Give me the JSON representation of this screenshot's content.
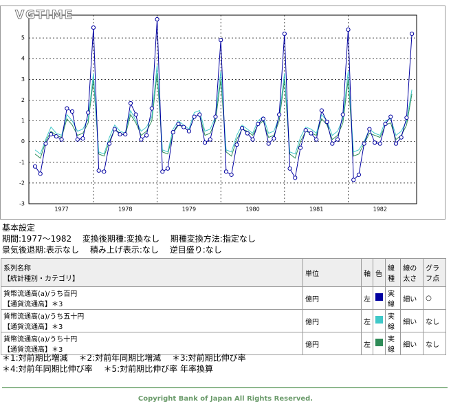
{
  "chart_data": {
    "type": "line",
    "watermark": "VGTIME",
    "categories": [
      null,
      null,
      null,
      null,
      null,
      "1977",
      null,
      null,
      null,
      null,
      null,
      null,
      null,
      null,
      null,
      null,
      null,
      "1978",
      null,
      null,
      null,
      null,
      null,
      null,
      null,
      null,
      null,
      null,
      null,
      "1979",
      null,
      null,
      null,
      null,
      null,
      null,
      null,
      null,
      null,
      null,
      null,
      "1980",
      null,
      null,
      null,
      null,
      null,
      null,
      null,
      null,
      null,
      null,
      null,
      "1981",
      null,
      null,
      null,
      null,
      null,
      null,
      null,
      null,
      null,
      null,
      null,
      "1982",
      null,
      null,
      null,
      null,
      null,
      null
    ],
    "ylim": [
      -3,
      6.1
    ],
    "yticks": [
      -3,
      -2,
      -1,
      0,
      1,
      2,
      3,
      4,
      5
    ],
    "grid": true,
    "series": [
      {
        "name": "貨幣流通高(a)/うち百円",
        "color": "#0000a0",
        "marker": true,
        "values": [
          -1.2,
          -1.55,
          -0.1,
          0.35,
          0.25,
          0.1,
          1.6,
          1.45,
          0.1,
          0.15,
          1.4,
          5.5,
          -1.4,
          -1.45,
          -0.1,
          0.6,
          0.35,
          0.35,
          1.85,
          1.3,
          0.1,
          0.3,
          1.6,
          5.9,
          -1.45,
          -1.3,
          0.45,
          0.85,
          0.7,
          0.5,
          1.2,
          1.3,
          -0.05,
          0.1,
          1.2,
          4.9,
          -1.45,
          -1.6,
          -0.15,
          0.65,
          0.4,
          0.1,
          0.85,
          1.1,
          -0.1,
          0.15,
          1.3,
          5.2,
          -1.3,
          -1.75,
          -0.3,
          0.55,
          0.4,
          0.1,
          1.5,
          0.95,
          -0.1,
          0.1,
          1.3,
          5.4,
          -1.85,
          -1.6,
          -0.1,
          0.6,
          -0.05,
          -0.1,
          0.85,
          1.2,
          -0.1,
          0.2,
          1.15,
          5.2
        ]
      },
      {
        "name": "貨幣流通高(a)/うち五十円",
        "color": "#40c8c8",
        "marker": false,
        "values": [
          -0.4,
          -0.6,
          0.1,
          0.7,
          0.4,
          0.3,
          1.3,
          1.0,
          0.5,
          0.6,
          1.1,
          3.3,
          -0.5,
          -0.6,
          0.2,
          0.8,
          0.5,
          0.4,
          1.5,
          1.0,
          0.5,
          0.7,
          1.2,
          3.7,
          -0.4,
          -0.5,
          0.6,
          1.0,
          0.8,
          0.6,
          1.4,
          1.5,
          0.5,
          0.6,
          1.2,
          3.4,
          -0.4,
          -0.5,
          0.3,
          0.8,
          0.6,
          0.4,
          1.0,
          1.2,
          0.4,
          0.5,
          1.2,
          3.3,
          -0.5,
          -0.6,
          0.2,
          0.7,
          0.6,
          0.4,
          1.3,
          1.0,
          0.3,
          0.5,
          1.1,
          3.4,
          -0.5,
          -0.4,
          0.0,
          0.6,
          0.4,
          0.3,
          1.0,
          1.1,
          0.3,
          0.5,
          1.0,
          2.5
        ]
      },
      {
        "name": "貨幣流通高(a)/うち十円",
        "color": "#2e8b57",
        "marker": false,
        "values": [
          -0.6,
          -0.8,
          0,
          0.5,
          0.3,
          0.2,
          1.1,
          0.8,
          0.3,
          0.4,
          0.9,
          3.0,
          -0.6,
          -0.7,
          0.0,
          0.6,
          0.4,
          0.3,
          1.3,
          0.9,
          0.3,
          0.5,
          1.0,
          3.3,
          -0.5,
          -0.6,
          0.4,
          0.8,
          0.7,
          0.5,
          1.2,
          1.3,
          0.3,
          0.4,
          1.0,
          3.0,
          -0.5,
          -0.7,
          0.1,
          0.6,
          0.5,
          0.3,
          0.8,
          1.0,
          0.2,
          0.3,
          1.0,
          3.0,
          -0.6,
          -0.8,
          0.0,
          0.5,
          0.4,
          0.3,
          1.1,
          0.8,
          0.1,
          0.3,
          0.9,
          3.0,
          -0.7,
          -0.6,
          -0.1,
          0.4,
          0.3,
          0.2,
          0.8,
          0.9,
          0.1,
          0.3,
          0.8,
          2.3
        ]
      }
    ]
  },
  "settings": {
    "heading": "基本設定",
    "lines": [
      "期間:1977～1982　 変換後期種:変換なし　 期種変換方法:指定なし",
      "景気後退期:表示なし　 積み上げ表示:なし　 逆目盛り:なし"
    ]
  },
  "table": {
    "headers": [
      "系列名称",
      "【統計種別・カテゴリ】",
      "単位",
      "軸",
      "色",
      "線種",
      "線の太さ",
      "グラフ点"
    ],
    "rows": [
      {
        "category": "【通貨流通高】＊3",
        "unit": "億円",
        "axis": "左",
        "line": "実線",
        "width": "細い",
        "points": "○"
      },
      {
        "category": "【通貨流通高】＊3",
        "unit": "億円",
        "axis": "左",
        "line": "実線",
        "width": "細い",
        "points": "なし"
      },
      {
        "category": "【通貨流通高】＊3",
        "unit": "億円",
        "axis": "左",
        "line": "実線",
        "width": "細い",
        "points": "なし"
      }
    ]
  },
  "notes": [
    "＊1:対前期比増減　 ＊2:対前年同期比増減　 ＊3:対前期比伸び率",
    "＊4:対前年同期比伸び率　 ＊5:対前期比伸び率 年率換算"
  ],
  "footer": "Copyright Bank of Japan All Rights Reserved."
}
